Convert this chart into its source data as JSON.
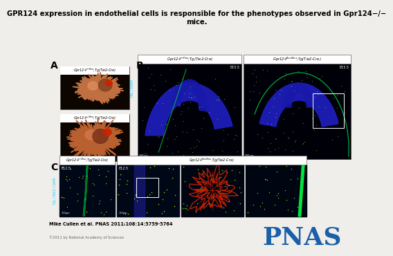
{
  "title": "GPR124 expression in endothelial cells is responsible for the phenotypes observed in Gpr124−/−\nmices.",
  "title_fontsize": 7.5,
  "bg_color": "#f0eeeb",
  "citation": "Mike Cullen et al. PNAS 2011;108:14:5759-5764",
  "copyright": "©2011 by National Academy of Sciences",
  "pnas_color": "#1a5fa8",
  "pnas_text": "PNAS",
  "pnas_fontsize": 26,
  "panel_labels": [
    "A",
    "B",
    "C"
  ],
  "lbl_B_left": "Gpr124$^{+/flox}$;Tg(Tie2-Cre)",
  "lbl_B_right": "Gpr124$^{flox/flox}$;Tg(Tie2-Cre)",
  "lbl_C_left": "Gpr124$^{+/flox}$;Tg(Tie2-Cre)",
  "lbl_C_right": "Gpr124$^{flox/flox}$;Tg(Tie2-Cre)",
  "lbl_A_top": "Gpr124$^{+/flox}$;Tg(Tie2-Cre)",
  "lbl_A_bot": "Gpr124$^{-/flox}$;Tg(Tie2-Cre)",
  "B_time": "E15.5",
  "C_time": "E12.5",
  "isl_dapi_color": "#00ccff",
  "isl_ng2_dapi_color": "#00ccff"
}
